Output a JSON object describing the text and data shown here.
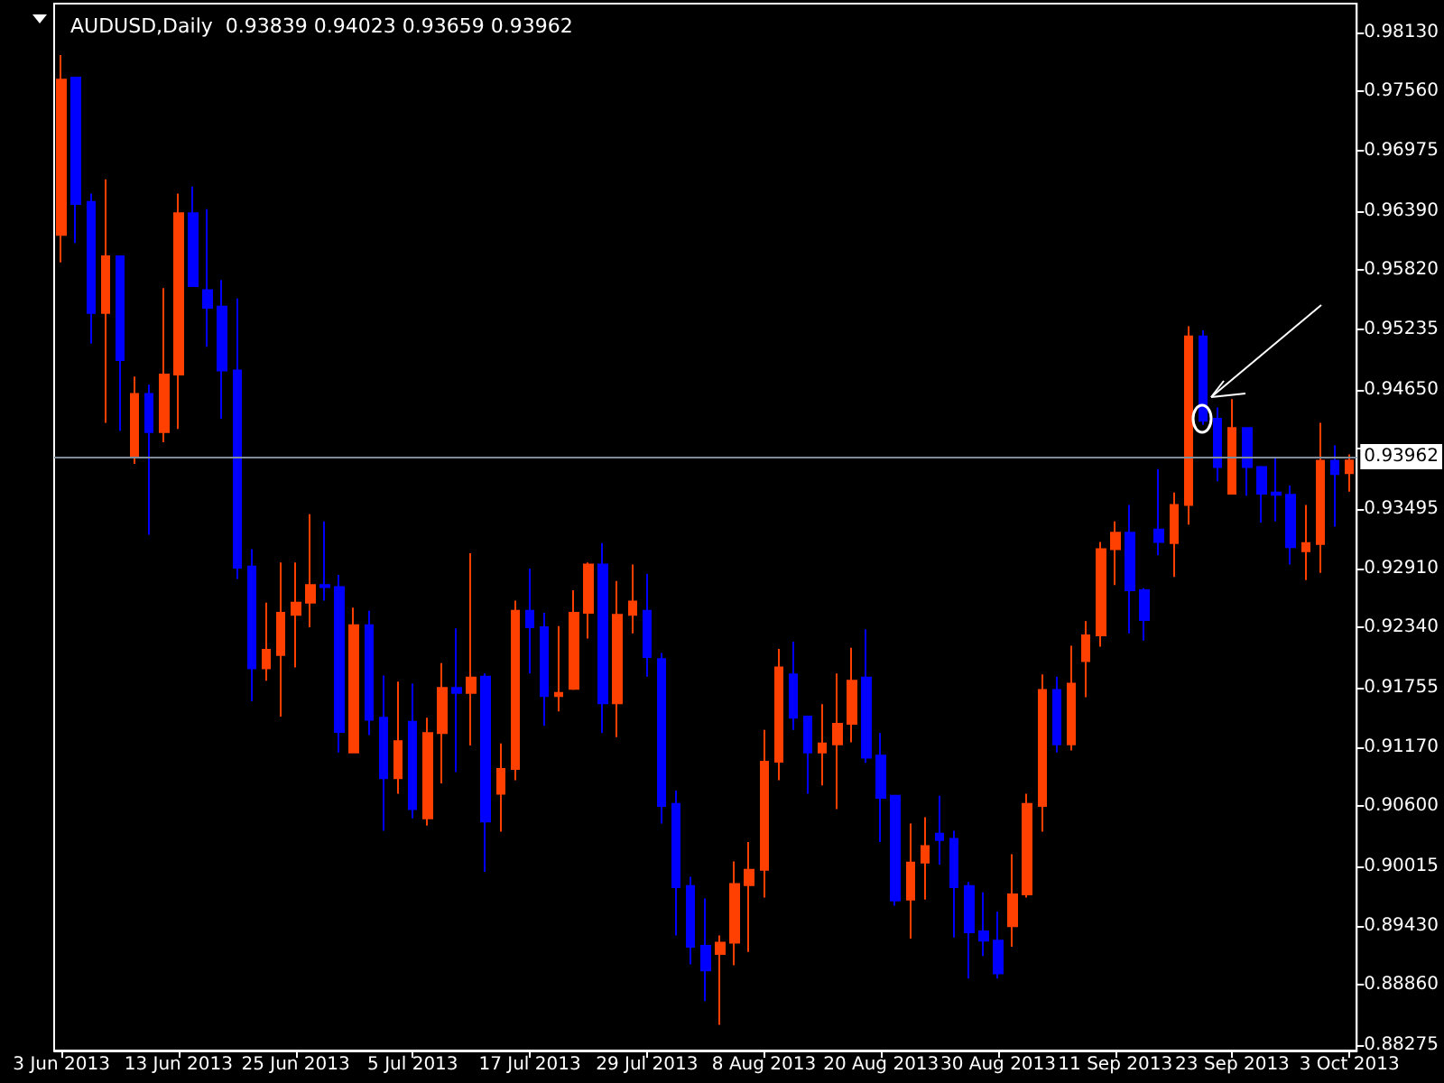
{
  "chart_data": {
    "type": "candlestick",
    "title": "AUDUSD,Daily  0.93839 0.94023 0.93659 0.93962",
    "categories": [
      "3 Jun 2013",
      null,
      null,
      null,
      null,
      null,
      null,
      null,
      "13 Jun 2013",
      null,
      null,
      null,
      null,
      null,
      null,
      null,
      "25 Jun 2013",
      null,
      null,
      null,
      null,
      null,
      null,
      null,
      "5 Jul 2013",
      null,
      null,
      null,
      null,
      null,
      null,
      null,
      "17 Jul 2013",
      null,
      null,
      null,
      null,
      null,
      null,
      null,
      "29 Jul 2013",
      null,
      null,
      null,
      null,
      null,
      null,
      null,
      "8 Aug 2013",
      null,
      null,
      null,
      null,
      null,
      null,
      null,
      "20 Aug 2013",
      null,
      null,
      null,
      null,
      null,
      null,
      null,
      "30 Aug 2013",
      null,
      null,
      null,
      null,
      null,
      null,
      null,
      "11 Sep 2013",
      null,
      null,
      null,
      null,
      null,
      null,
      null,
      "23 Sep 2013",
      null,
      null,
      null,
      null,
      null,
      null,
      null,
      "3 Oct 2013"
    ],
    "ohlc": [
      [
        0.9616,
        0.9791,
        0.9589,
        0.9767
      ],
      [
        0.9769,
        0.9769,
        0.9608,
        0.9646
      ],
      [
        0.9648,
        0.9656,
        0.951,
        0.954
      ],
      [
        0.954,
        0.967,
        0.9433,
        0.9595
      ],
      [
        0.9595,
        0.9595,
        0.9425,
        0.9494
      ],
      [
        0.9401,
        0.9478,
        0.9393,
        0.9461
      ],
      [
        0.9461,
        0.947,
        0.9324,
        0.9424
      ],
      [
        0.9424,
        0.9564,
        0.9414,
        0.948
      ],
      [
        0.948,
        0.9656,
        0.9427,
        0.9637
      ],
      [
        0.9637,
        0.9663,
        0.9566,
        0.9566
      ],
      [
        0.9562,
        0.9641,
        0.9507,
        0.9545
      ],
      [
        0.9546,
        0.9572,
        0.9437,
        0.9484
      ],
      [
        0.9484,
        0.9554,
        0.9281,
        0.9292
      ],
      [
        0.9293,
        0.931,
        0.9162,
        0.9194
      ],
      [
        0.9194,
        0.9258,
        0.9182,
        0.9212
      ],
      [
        0.9207,
        0.9297,
        0.9147,
        0.9248
      ],
      [
        0.9246,
        0.9297,
        0.9195,
        0.9258
      ],
      [
        0.9258,
        0.9344,
        0.9234,
        0.9275
      ],
      [
        0.9275,
        0.9337,
        0.926,
        0.9273
      ],
      [
        0.9273,
        0.9285,
        0.9112,
        0.9132
      ],
      [
        0.9112,
        0.9253,
        0.9112,
        0.9236
      ],
      [
        0.9236,
        0.925,
        0.9129,
        0.9144
      ],
      [
        0.9146,
        0.9187,
        0.9036,
        0.9087
      ],
      [
        0.9087,
        0.9181,
        0.9072,
        0.9123
      ],
      [
        0.9142,
        0.9179,
        0.9048,
        0.9057
      ],
      [
        0.9048,
        0.9146,
        0.9041,
        0.9131
      ],
      [
        0.9131,
        0.9199,
        0.9082,
        0.9175
      ],
      [
        0.9175,
        0.9233,
        0.9093,
        0.917
      ],
      [
        0.917,
        0.9306,
        0.9119,
        0.9185
      ],
      [
        0.9186,
        0.9189,
        0.8996,
        0.9045
      ],
      [
        0.9072,
        0.9121,
        0.9035,
        0.9096
      ],
      [
        0.9096,
        0.926,
        0.9085,
        0.925
      ],
      [
        0.925,
        0.9291,
        0.9189,
        0.9234
      ],
      [
        0.9234,
        0.9248,
        0.9138,
        0.9167
      ],
      [
        0.9167,
        0.9235,
        0.9152,
        0.917
      ],
      [
        0.9174,
        0.927,
        0.9173,
        0.9248
      ],
      [
        0.9248,
        0.9297,
        0.9223,
        0.9295
      ],
      [
        0.9295,
        0.9316,
        0.9131,
        0.916
      ],
      [
        0.916,
        0.9279,
        0.9127,
        0.9246
      ],
      [
        0.9246,
        0.9295,
        0.9228,
        0.9259
      ],
      [
        0.925,
        0.9286,
        0.9186,
        0.9205
      ],
      [
        0.9203,
        0.9209,
        0.9043,
        0.906
      ],
      [
        0.9062,
        0.9075,
        0.8934,
        0.8981
      ],
      [
        0.8982,
        0.8991,
        0.8906,
        0.8923
      ],
      [
        0.8924,
        0.897,
        0.887,
        0.89
      ],
      [
        0.8916,
        0.8934,
        0.8847,
        0.8927
      ],
      [
        0.8927,
        0.9006,
        0.8905,
        0.8984
      ],
      [
        0.8983,
        0.9025,
        0.8918,
        0.8998
      ],
      [
        0.8998,
        0.9134,
        0.8971,
        0.9103
      ],
      [
        0.9103,
        0.9213,
        0.9085,
        0.9195
      ],
      [
        0.9188,
        0.922,
        0.9134,
        0.9146
      ],
      [
        0.9147,
        0.9147,
        0.9072,
        0.9112
      ],
      [
        0.9112,
        0.9159,
        0.908,
        0.9121
      ],
      [
        0.912,
        0.9189,
        0.9057,
        0.914
      ],
      [
        0.914,
        0.9214,
        0.9122,
        0.9182
      ],
      [
        0.9185,
        0.9232,
        0.9102,
        0.9107
      ],
      [
        0.9109,
        0.9131,
        0.9025,
        0.9068
      ],
      [
        0.907,
        0.907,
        0.8963,
        0.8968
      ],
      [
        0.8969,
        0.9043,
        0.8931,
        0.9005
      ],
      [
        0.9005,
        0.9049,
        0.8969,
        0.9021
      ],
      [
        0.9033,
        0.907,
        0.9003,
        0.9027
      ],
      [
        0.9028,
        0.9036,
        0.8932,
        0.8981
      ],
      [
        0.8982,
        0.8986,
        0.8892,
        0.8937
      ],
      [
        0.8938,
        0.8976,
        0.8914,
        0.8929
      ],
      [
        0.8929,
        0.8957,
        0.8892,
        0.8897
      ],
      [
        0.8943,
        0.9013,
        0.8923,
        0.8974
      ],
      [
        0.8974,
        0.9072,
        0.8971,
        0.9062
      ],
      [
        0.906,
        0.9188,
        0.9035,
        0.9173
      ],
      [
        0.9173,
        0.9186,
        0.9112,
        0.912
      ],
      [
        0.912,
        0.9216,
        0.9114,
        0.9179
      ],
      [
        0.9201,
        0.924,
        0.9166,
        0.9226
      ],
      [
        0.9226,
        0.9317,
        0.9215,
        0.931
      ],
      [
        0.931,
        0.9337,
        0.9275,
        0.9326
      ],
      [
        0.9326,
        0.9353,
        0.9228,
        0.927
      ],
      [
        0.927,
        0.9272,
        0.9221,
        0.9241
      ],
      [
        0.9329,
        0.9388,
        0.9304,
        0.9317
      ],
      [
        0.9316,
        0.9365,
        0.9283,
        0.9353
      ],
      [
        0.9353,
        0.9527,
        0.9334,
        0.9517
      ],
      [
        0.9517,
        0.9523,
        0.9431,
        0.9435
      ],
      [
        0.9437,
        0.9448,
        0.9376,
        0.939
      ],
      [
        0.9364,
        0.9456,
        0.9364,
        0.9428
      ],
      [
        0.9428,
        0.9428,
        0.9362,
        0.939
      ],
      [
        0.939,
        0.9391,
        0.9336,
        0.9364
      ],
      [
        0.9365,
        0.94,
        0.9337,
        0.9363
      ],
      [
        0.9363,
        0.9372,
        0.9295,
        0.9312
      ],
      [
        0.9308,
        0.9353,
        0.928,
        0.9316
      ],
      [
        0.9315,
        0.9433,
        0.9287,
        0.9396
      ],
      [
        0.9396,
        0.9411,
        0.9332,
        0.9383
      ],
      [
        0.93839,
        0.94023,
        0.93659,
        0.93962
      ]
    ],
    "colors": [
      "#ff4000",
      "#0000ff",
      "#0000ff",
      "#ff4000",
      "#0000ff",
      "#ff4000",
      "#0000ff",
      "#ff4000",
      "#ff4000",
      "#0000ff",
      "#0000ff",
      "#0000ff",
      "#0000ff",
      "#0000ff",
      "#ff4000",
      "#ff4000",
      "#ff4000",
      "#ff4000",
      "#0000ff",
      "#0000ff",
      "#ff4000",
      "#0000ff",
      "#0000ff",
      "#ff4000",
      "#0000ff",
      "#ff4000",
      "#ff4000",
      "#0000ff",
      "#ff4000",
      "#0000ff",
      "#ff4000",
      "#ff4000",
      "#0000ff",
      "#0000ff",
      "#ff4000",
      "#ff4000",
      "#ff4000",
      "#0000ff",
      "#ff4000",
      "#ff4000",
      "#0000ff",
      "#0000ff",
      "#0000ff",
      "#0000ff",
      "#0000ff",
      "#ff4000",
      "#ff4000",
      "#ff4000",
      "#ff4000",
      "#ff4000",
      "#0000ff",
      "#0000ff",
      "#ff4000",
      "#ff4000",
      "#ff4000",
      "#0000ff",
      "#0000ff",
      "#0000ff",
      "#ff4000",
      "#ff4000",
      "#0000ff",
      "#0000ff",
      "#0000ff",
      "#0000ff",
      "#0000ff",
      "#ff4000",
      "#ff4000",
      "#ff4000",
      "#0000ff",
      "#ff4000",
      "#ff4000",
      "#ff4000",
      "#ff4000",
      "#0000ff",
      "#0000ff",
      "#0000ff",
      "#ff4000",
      "#ff4000",
      "#0000ff",
      "#0000ff",
      "#ff4000",
      "#0000ff",
      "#0000ff",
      "#0000ff",
      "#0000ff",
      "#ff4000",
      "#ff4000",
      "#0000ff",
      "#ff4000"
    ],
    "ylim": [
      0.8822,
      0.9841
    ],
    "yticks": [
      {
        "value": 0.9813,
        "label": "0.98130"
      },
      {
        "value": 0.9756,
        "label": "0.97560"
      },
      0.96975,
      {
        "value": 0.9639,
        "label": "0.96390"
      },
      {
        "value": 0.9582,
        "label": "0.95820"
      },
      0.95235,
      {
        "value": 0.9465,
        "label": "0.94650"
      },
      {
        "value": 0.9408,
        "label": null
      },
      0.93495,
      {
        "value": 0.9291,
        "label": "0.92910"
      },
      {
        "value": 0.9234,
        "label": "0.92340"
      },
      0.91755,
      {
        "value": 0.9117,
        "label": "0.91170"
      },
      {
        "value": 0.906,
        "label": "0.90600"
      },
      0.90015,
      {
        "value": 0.8943,
        "label": "0.89430"
      },
      {
        "value": 0.8886,
        "label": "0.88860"
      },
      0.88275
    ],
    "ref_lines": [
      {
        "axis": "y",
        "value": 0.93962,
        "label": "0.93962",
        "color": "#7f8c99"
      }
    ],
    "grid": false
  }
}
